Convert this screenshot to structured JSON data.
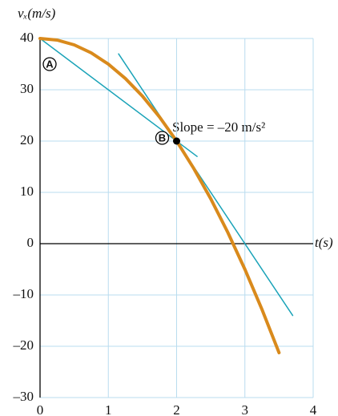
{
  "chart_data": {
    "type": "line",
    "y_label": "vₓ(m/s)",
    "x_label": "t(s)",
    "xlim": [
      0,
      4
    ],
    "xticks": [
      0,
      1,
      2,
      3,
      4
    ],
    "ylim": [
      -30,
      40
    ],
    "yticks": [
      {
        "value": -30,
        "label": "–30"
      },
      {
        "value": -20,
        "label": "–20"
      },
      {
        "value": -10,
        "label": "–10"
      },
      0,
      10,
      20,
      30,
      40
    ],
    "grid": true,
    "grid_color": "#b9dcef",
    "series": [
      {
        "color": "#d98a1c",
        "width": 4,
        "x": [
          0,
          0.25,
          0.5,
          0.75,
          1,
          1.25,
          1.5,
          1.75,
          2,
          2.25,
          2.5,
          2.75,
          3,
          3.25,
          3.5
        ],
        "values": [
          40,
          39.6875,
          38.75,
          37.1875,
          35,
          32.1875,
          28.75,
          24.6875,
          20,
          14.6875,
          8.75,
          2.1875,
          -5,
          -12.8125,
          -21.25
        ]
      },
      {
        "color": "#1aa3b8",
        "width": 1.5,
        "x": [
          0,
          2.3
        ],
        "values": [
          40,
          17
        ]
      },
      {
        "color": "#1aa3b8",
        "width": 1.5,
        "x": [
          1.15,
          3.7
        ],
        "values": [
          37,
          -14
        ]
      }
    ],
    "points": [
      {
        "label": "A",
        "x": 0,
        "y": 40,
        "marker": false
      },
      {
        "label": "B",
        "x": 2,
        "y": 20,
        "marker": true
      }
    ],
    "annotation": "Slope = –20 m/s²"
  }
}
